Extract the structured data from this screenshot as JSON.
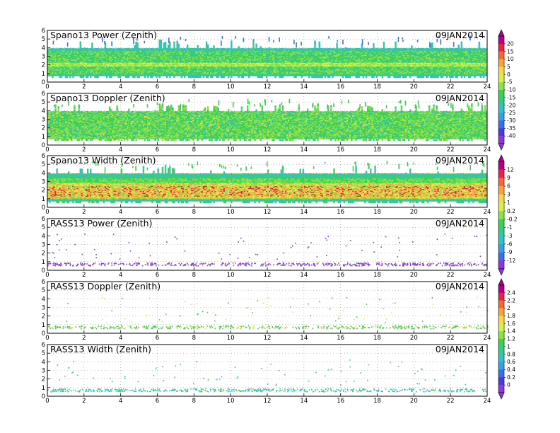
{
  "chart_data": [
    {
      "type": "heatmap",
      "title": "Spano13 Power (Zenith)",
      "date": "09JAN2014",
      "xlim": [
        0,
        24
      ],
      "ylim": [
        0,
        6
      ],
      "xticks": [
        "0",
        "2",
        "4",
        "6",
        "8",
        "10",
        "12",
        "14",
        "16",
        "18",
        "20",
        "22",
        "24"
      ],
      "yticks": [
        "0",
        "1",
        "2",
        "3",
        "4",
        "5",
        "6"
      ],
      "grid": true,
      "colorbar": {
        "labels": [
          "20",
          "15",
          "10",
          "5",
          "0",
          "-5",
          "-10",
          "-15",
          "-20",
          "-25",
          "-30",
          "-35",
          "-40"
        ],
        "colors": [
          "#b0008a",
          "#e3254a",
          "#ee6a3a",
          "#f3a43f",
          "#f5d74e",
          "#d8ee49",
          "#8be24a",
          "#3fd053",
          "#35c98f",
          "#35c0c9",
          "#3a9fe0",
          "#3d6ee3",
          "#4a3ae0",
          "#8a3ad8"
        ]
      },
      "cells_note": "range-time field roughly 0.5–4 km, stronger near 2 km"
    },
    {
      "type": "heatmap",
      "title": "Spano13 Doppler (Zenith)",
      "date": "09JAN2014",
      "xlim": [
        0,
        24
      ],
      "ylim": [
        0,
        6
      ],
      "xticks": [
        "0",
        "2",
        "4",
        "6",
        "8",
        "10",
        "12",
        "14",
        "16",
        "18",
        "20",
        "22",
        "24"
      ],
      "yticks": [
        "0",
        "1",
        "2",
        "3",
        "4",
        "5",
        "6"
      ],
      "grid": true
    },
    {
      "type": "heatmap",
      "title": "Spano13 Width (Zenith)",
      "date": "09JAN2014",
      "xlim": [
        0,
        24
      ],
      "ylim": [
        0,
        6
      ],
      "xticks": [
        "0",
        "2",
        "4",
        "6",
        "8",
        "10",
        "12",
        "14",
        "16",
        "18",
        "20",
        "22",
        "24"
      ],
      "yticks": [
        "0",
        "1",
        "2",
        "3",
        "4",
        "5",
        "6"
      ],
      "grid": true,
      "colorbar": {
        "labels": [
          "12",
          "9",
          "6",
          "3",
          "1",
          "0.2",
          "-0.2",
          "-1",
          "-3",
          "-6",
          "-9",
          "-12"
        ],
        "colors": [
          "#b0008a",
          "#e3254a",
          "#ee6a3a",
          "#f3a43f",
          "#f5d74e",
          "#d8ee49",
          "#8be24a",
          "#3fd053",
          "#35c98f",
          "#35c0c9",
          "#3a9fe0",
          "#3d6ee3",
          "#8a3ad8"
        ]
      }
    },
    {
      "type": "scatter",
      "title": "RASS13 Power (Zenith)",
      "date": "09JAN2014",
      "xlim": [
        0,
        24
      ],
      "ylim": [
        0,
        6
      ],
      "xticks": [
        "0",
        "2",
        "4",
        "6",
        "8",
        "10",
        "12",
        "14",
        "16",
        "18",
        "20",
        "22",
        "24"
      ],
      "yticks": [
        "0",
        "1",
        "2",
        "3",
        "4",
        "5",
        "6"
      ],
      "grid": true
    },
    {
      "type": "scatter",
      "title": "RASS13 Doppler (Zenith)",
      "date": "09JAN2014",
      "xlim": [
        0,
        24
      ],
      "ylim": [
        0,
        6
      ],
      "xticks": [
        "0",
        "2",
        "4",
        "6",
        "8",
        "10",
        "12",
        "14",
        "16",
        "18",
        "20",
        "22",
        "24"
      ],
      "yticks": [
        "0",
        "1",
        "2",
        "3",
        "4",
        "5",
        "6"
      ],
      "grid": true,
      "colorbar": {
        "labels": [
          "2.4",
          "2.2",
          "2",
          "1.8",
          "1.6",
          "1.4",
          "1.2",
          "1",
          "0.8",
          "0.6",
          "0.4",
          "0.2",
          "0"
        ],
        "colors": [
          "#b0008a",
          "#e3254a",
          "#ee6a3a",
          "#f3a43f",
          "#f5d74e",
          "#d8ee49",
          "#8be24a",
          "#3fd053",
          "#35c98f",
          "#35c0c9",
          "#3a9fe0",
          "#3d6ee3",
          "#4a3ae0",
          "#8a3ad8"
        ]
      }
    },
    {
      "type": "scatter",
      "title": "RASS13 Width (Zenith)",
      "date": "09JAN2014",
      "xlim": [
        0,
        24
      ],
      "ylim": [
        0,
        6
      ],
      "xticks": [
        "0",
        "2",
        "4",
        "6",
        "8",
        "10",
        "12",
        "14",
        "16",
        "18",
        "20",
        "22",
        "24"
      ],
      "yticks": [
        "0",
        "1",
        "2",
        "3",
        "4",
        "5",
        "6"
      ],
      "grid": true
    }
  ]
}
